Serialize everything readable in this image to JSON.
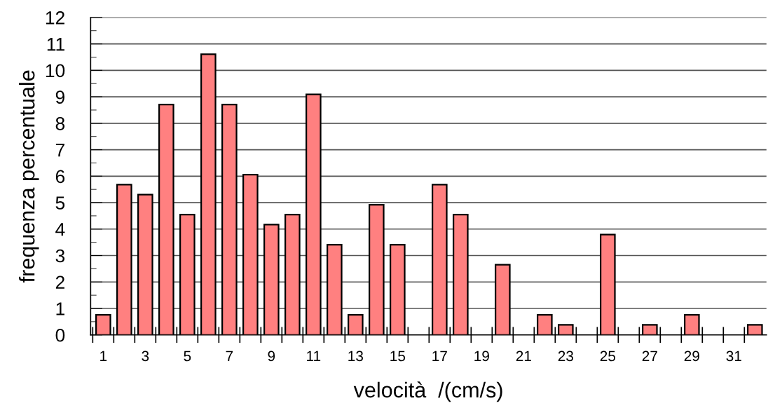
{
  "chart_data": {
    "type": "bar",
    "xlabel": "velocità  /(cm/s)",
    "ylabel": "frequenza percentuale",
    "categories": [
      "1",
      null,
      "3",
      null,
      "5",
      null,
      "7",
      null,
      "9",
      null,
      "11",
      null,
      "13",
      null,
      "15",
      null,
      "17",
      null,
      "19",
      null,
      "21",
      null,
      "23",
      null,
      "25",
      null,
      "27",
      null,
      "29",
      null,
      "31",
      null
    ],
    "values": [
      0.76,
      5.68,
      5.3,
      8.71,
      4.55,
      10.61,
      8.71,
      6.06,
      4.17,
      4.55,
      9.09,
      3.41,
      0.76,
      4.92,
      3.41,
      0,
      5.68,
      4.55,
      0,
      2.65,
      0,
      0.76,
      0.38,
      0,
      3.79,
      0,
      0.38,
      0,
      0.76,
      0,
      0,
      0.38
    ],
    "color": "#ff8080",
    "ylim": [
      0,
      12
    ],
    "yticks": [
      0,
      {
        "value": 0.5,
        "label": null
      },
      1,
      {
        "value": 1.5,
        "label": null
      },
      2,
      {
        "value": 2.5,
        "label": null
      },
      3,
      {
        "value": 3.5,
        "label": null
      },
      4,
      {
        "value": 4.5,
        "label": null
      },
      5,
      {
        "value": 5.5,
        "label": null
      },
      6,
      {
        "value": 6.5,
        "label": null
      },
      7,
      {
        "value": 7.5,
        "label": null
      },
      8,
      {
        "value": 8.5,
        "label": null
      },
      9,
      {
        "value": 9.5,
        "label": null
      },
      10,
      {
        "value": 10.5,
        "label": null
      },
      11,
      {
        "value": 11.5,
        "label": null
      },
      12
    ],
    "grid": "y"
  }
}
